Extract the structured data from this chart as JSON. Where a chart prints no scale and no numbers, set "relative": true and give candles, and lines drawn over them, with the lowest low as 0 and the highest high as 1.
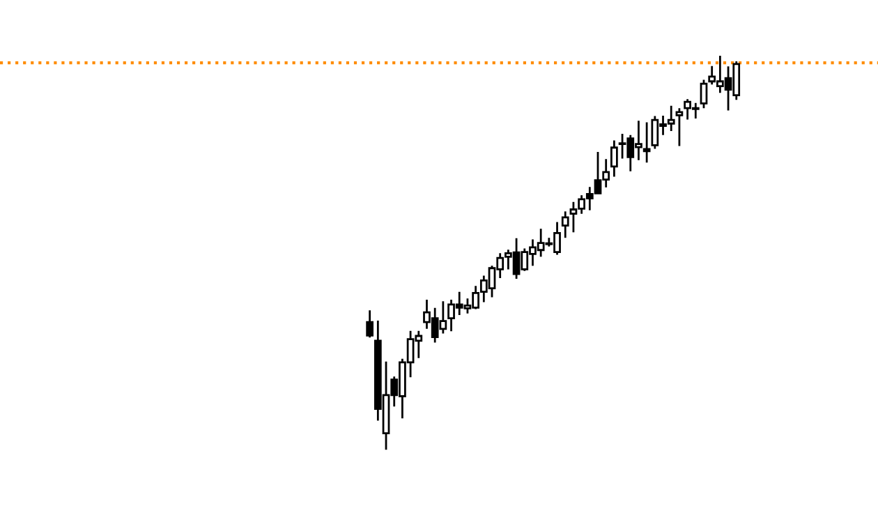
{
  "chart_data": {
    "type": "candlestick",
    "relative": true,
    "categories": [
      null,
      null,
      null,
      null,
      null,
      null,
      null,
      null,
      null,
      null,
      null,
      null,
      null,
      null,
      null,
      null,
      null,
      null,
      null,
      null,
      null,
      null,
      null,
      null,
      null,
      null,
      null,
      null,
      null,
      null,
      null,
      null,
      null,
      null,
      null,
      null,
      null,
      null,
      null,
      null,
      null,
      null,
      null,
      null,
      null,
      null
    ],
    "ohlc": [
      [
        0.324,
        0.354,
        0.285,
        0.29
      ],
      [
        0.277,
        0.328,
        0.074,
        0.104
      ],
      [
        0.042,
        0.224,
        0.0,
        0.139
      ],
      [
        0.178,
        0.186,
        0.11,
        0.139
      ],
      [
        0.136,
        0.231,
        0.08,
        0.222
      ],
      [
        0.222,
        0.302,
        0.184,
        0.281
      ],
      [
        0.277,
        0.302,
        0.233,
        0.289
      ],
      [
        0.324,
        0.381,
        0.307,
        0.349
      ],
      [
        0.334,
        0.36,
        0.272,
        0.286
      ],
      [
        0.307,
        0.377,
        0.295,
        0.327
      ],
      [
        0.334,
        0.381,
        0.301,
        0.369
      ],
      [
        0.369,
        0.401,
        0.342,
        0.361
      ],
      [
        0.359,
        0.384,
        0.346,
        0.366
      ],
      [
        0.361,
        0.416,
        0.357,
        0.398
      ],
      [
        0.401,
        0.442,
        0.375,
        0.43
      ],
      [
        0.41,
        0.467,
        0.387,
        0.461
      ],
      [
        0.458,
        0.499,
        0.436,
        0.487
      ],
      [
        0.49,
        0.508,
        0.458,
        0.499
      ],
      [
        0.501,
        0.537,
        0.434,
        0.446
      ],
      [
        0.458,
        0.511,
        0.454,
        0.502
      ],
      [
        0.497,
        0.534,
        0.467,
        0.514
      ],
      [
        0.507,
        0.561,
        0.49,
        0.525
      ],
      [
        0.522,
        0.538,
        0.516,
        0.523
      ],
      [
        0.502,
        0.578,
        0.495,
        0.55
      ],
      [
        0.569,
        0.605,
        0.538,
        0.59
      ],
      [
        0.599,
        0.629,
        0.552,
        0.61
      ],
      [
        0.612,
        0.646,
        0.599,
        0.636
      ],
      [
        0.649,
        0.667,
        0.608,
        0.638
      ],
      [
        0.684,
        0.756,
        0.651,
        0.651
      ],
      [
        0.686,
        0.738,
        0.666,
        0.705
      ],
      [
        0.719,
        0.785,
        0.693,
        0.767
      ],
      [
        0.778,
        0.802,
        0.739,
        0.776
      ],
      [
        0.79,
        0.799,
        0.707,
        0.743
      ],
      [
        0.768,
        0.835,
        0.735,
        0.776
      ],
      [
        0.763,
        0.831,
        0.729,
        0.758
      ],
      [
        0.773,
        0.847,
        0.764,
        0.837
      ],
      [
        0.826,
        0.848,
        0.799,
        0.822
      ],
      [
        0.828,
        0.873,
        0.809,
        0.837
      ],
      [
        0.849,
        0.867,
        0.771,
        0.857
      ],
      [
        0.867,
        0.89,
        0.838,
        0.883
      ],
      [
        0.865,
        0.88,
        0.841,
        0.866
      ],
      [
        0.879,
        0.939,
        0.867,
        0.929
      ],
      [
        0.935,
        0.974,
        0.927,
        0.947
      ],
      [
        0.923,
        1.0,
        0.906,
        0.935
      ],
      [
        0.943,
        0.973,
        0.861,
        0.914
      ],
      [
        0.9,
        0.986,
        0.888,
        0.979
      ]
    ],
    "ref_lines": [
      {
        "axis": "y",
        "value": 0.982,
        "color": "#ff8c00",
        "line_style": "dotted"
      }
    ]
  }
}
